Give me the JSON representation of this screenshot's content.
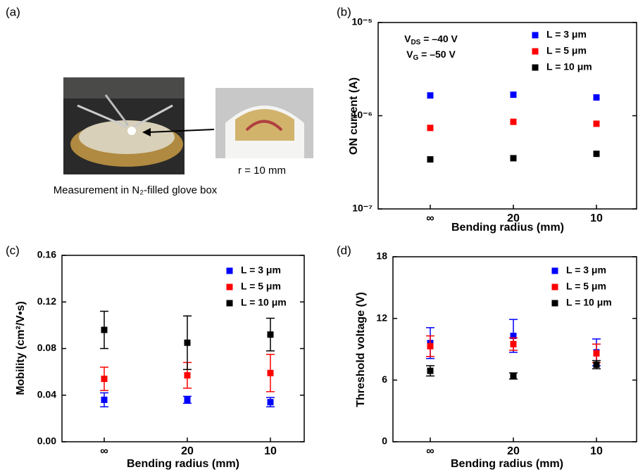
{
  "panel_a": {
    "panel_label": "(a)",
    "inset_label": "r = 10 mm",
    "caption": "Measurement in N₂-filled glove box"
  },
  "chart_data": [
    {
      "type": "scatter",
      "panel_label": "(b)",
      "y_label": "ON current (A)",
      "x_label": "Bending radius (mm)",
      "categories": [
        "∞",
        "20",
        "10"
      ],
      "log_y": true,
      "ylim": [
        1e-07,
        1e-05
      ],
      "yticks": [
        {
          "value": 1e-07,
          "label": "10⁻⁷"
        },
        {
          "value": 1e-06,
          "label": "10⁻⁶"
        },
        {
          "value": 1e-05,
          "label": "10⁻⁵"
        }
      ],
      "annotations": [
        {
          "symbol": "V",
          "subscript": "DS",
          "text": " = –40 V"
        },
        {
          "symbol": "V",
          "subscript": "G",
          "text": " = –50 V"
        }
      ],
      "series": [
        {
          "name": "L = 3 μm",
          "color": "#0000ff",
          "values": [
            1.65e-06,
            1.68e-06,
            1.57e-06
          ]
        },
        {
          "name": "L = 5 μm",
          "color": "#ff0000",
          "values": [
            7.4e-07,
            8.6e-07,
            8.2e-07
          ]
        },
        {
          "name": "L = 10 μm",
          "color": "#000000",
          "values": [
            3.4e-07,
            3.5e-07,
            3.9e-07
          ]
        }
      ]
    },
    {
      "type": "errorbar",
      "panel_label": "(c)",
      "y_label": "Mobility (cm²/V•s)",
      "x_label": "Bending radius (mm)",
      "categories": [
        "∞",
        "20",
        "10"
      ],
      "ylim": [
        0,
        0.16
      ],
      "yticks": [
        {
          "value": 0,
          "label": "0.00"
        },
        0.04,
        0.08,
        0.12,
        0.16
      ],
      "series": [
        {
          "name": "L = 3 μm",
          "color": "#0000ff",
          "values": [
            0.036,
            0.036,
            0.034
          ],
          "errors": [
            0.006,
            0.003,
            0.004
          ]
        },
        {
          "name": "L = 5 μm",
          "color": "#ff0000",
          "values": [
            0.054,
            0.057,
            0.059
          ],
          "errors": [
            0.01,
            0.011,
            0.016
          ]
        },
        {
          "name": "L = 10 μm",
          "color": "#000000",
          "values": [
            0.096,
            0.085,
            0.092
          ],
          "errors": [
            0.016,
            0.023,
            0.014
          ]
        }
      ]
    },
    {
      "type": "errorbar",
      "panel_label": "(d)",
      "y_label": "Threshold voltage (V)",
      "x_label": "Bending radius (mm)",
      "categories": [
        "∞",
        "20",
        "10"
      ],
      "ylim": [
        0,
        18
      ],
      "yticks": [
        0,
        6,
        12,
        18
      ],
      "series": [
        {
          "name": "L = 3 μm",
          "color": "#0000ff",
          "values": [
            9.6,
            10.3,
            8.7
          ],
          "errors": [
            1.5,
            1.6,
            1.3
          ]
        },
        {
          "name": "L = 5 μm",
          "color": "#ff0000",
          "values": [
            9.3,
            9.5,
            8.6
          ],
          "errors": [
            1.0,
            0.6,
            0.9
          ]
        },
        {
          "name": "L = 10 μm",
          "color": "#000000",
          "values": [
            6.9,
            6.4,
            7.5
          ],
          "errors": [
            0.5,
            0.3,
            0.4
          ]
        }
      ]
    }
  ]
}
